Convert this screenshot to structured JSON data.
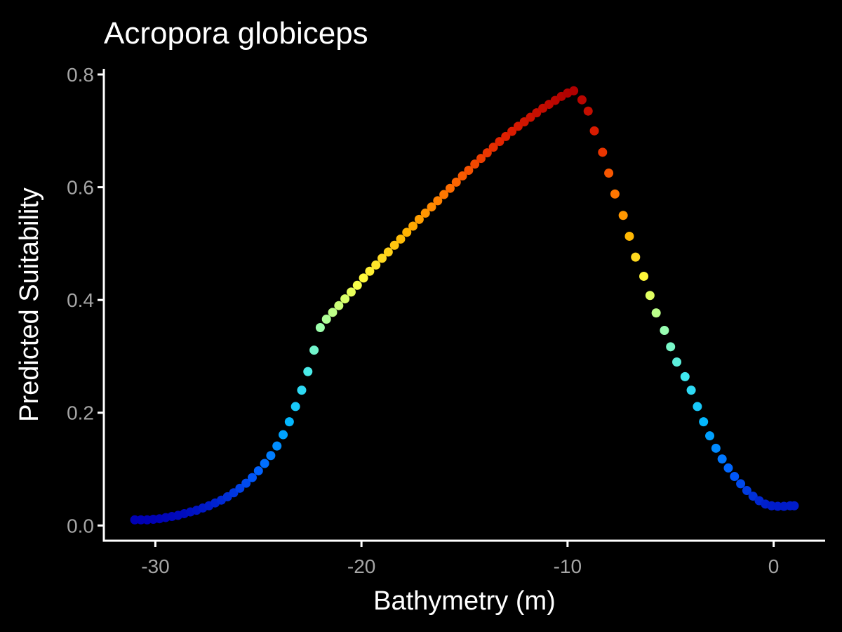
{
  "chart_data": {
    "type": "scatter",
    "title": "Acropora globiceps",
    "xlabel": "Bathymetry (m)",
    "ylabel": "Predicted Suitability",
    "xlim": [
      -32.5,
      2.5
    ],
    "ylim": [
      -0.027,
      0.81
    ],
    "x_ticks": [
      -30,
      -20,
      -10,
      0
    ],
    "x_tick_labels": [
      "-30",
      "-20",
      "-10",
      "0"
    ],
    "y_ticks": [
      0.0,
      0.2,
      0.4,
      0.6,
      0.8
    ],
    "y_tick_labels": [
      "0.0",
      "0.2",
      "0.4",
      "0.6",
      "0.8"
    ],
    "grid": false,
    "legend": "none",
    "color_scale": [
      "#0000b4",
      "#0060ff",
      "#00b4ff",
      "#40e8f0",
      "#9affb0",
      "#ffff40",
      "#ffb400",
      "#ff6a00",
      "#e02000",
      "#b00000"
    ],
    "color_by": "y",
    "points": [
      {
        "x": -31.0,
        "y": 0.01
      },
      {
        "x": -30.7,
        "y": 0.01
      },
      {
        "x": -30.4,
        "y": 0.01
      },
      {
        "x": -30.1,
        "y": 0.011
      },
      {
        "x": -29.8,
        "y": 0.012
      },
      {
        "x": -29.5,
        "y": 0.014
      },
      {
        "x": -29.2,
        "y": 0.016
      },
      {
        "x": -28.9,
        "y": 0.018
      },
      {
        "x": -28.6,
        "y": 0.021
      },
      {
        "x": -28.3,
        "y": 0.024
      },
      {
        "x": -28.0,
        "y": 0.027
      },
      {
        "x": -27.7,
        "y": 0.031
      },
      {
        "x": -27.4,
        "y": 0.035
      },
      {
        "x": -27.1,
        "y": 0.04
      },
      {
        "x": -26.8,
        "y": 0.045
      },
      {
        "x": -26.5,
        "y": 0.051
      },
      {
        "x": -26.2,
        "y": 0.058
      },
      {
        "x": -25.9,
        "y": 0.066
      },
      {
        "x": -25.6,
        "y": 0.075
      },
      {
        "x": -25.3,
        "y": 0.085
      },
      {
        "x": -25.0,
        "y": 0.097
      },
      {
        "x": -24.7,
        "y": 0.11
      },
      {
        "x": -24.4,
        "y": 0.124
      },
      {
        "x": -24.1,
        "y": 0.141
      },
      {
        "x": -23.8,
        "y": 0.161
      },
      {
        "x": -23.5,
        "y": 0.184
      },
      {
        "x": -23.2,
        "y": 0.211
      },
      {
        "x": -22.9,
        "y": 0.24
      },
      {
        "x": -22.6,
        "y": 0.273
      },
      {
        "x": -22.3,
        "y": 0.311
      },
      {
        "x": -22.0,
        "y": 0.351
      },
      {
        "x": -21.7,
        "y": 0.366
      },
      {
        "x": -21.4,
        "y": 0.378
      },
      {
        "x": -21.1,
        "y": 0.39
      },
      {
        "x": -20.8,
        "y": 0.402
      },
      {
        "x": -20.5,
        "y": 0.414
      },
      {
        "x": -20.2,
        "y": 0.426
      },
      {
        "x": -19.9,
        "y": 0.439
      },
      {
        "x": -19.6,
        "y": 0.451
      },
      {
        "x": -19.3,
        "y": 0.462
      },
      {
        "x": -19.0,
        "y": 0.474
      },
      {
        "x": -18.7,
        "y": 0.485
      },
      {
        "x": -18.4,
        "y": 0.497
      },
      {
        "x": -18.1,
        "y": 0.508
      },
      {
        "x": -17.8,
        "y": 0.52
      },
      {
        "x": -17.5,
        "y": 0.531
      },
      {
        "x": -17.2,
        "y": 0.543
      },
      {
        "x": -16.9,
        "y": 0.554
      },
      {
        "x": -16.6,
        "y": 0.565
      },
      {
        "x": -16.3,
        "y": 0.576
      },
      {
        "x": -16.0,
        "y": 0.587
      },
      {
        "x": -15.7,
        "y": 0.598
      },
      {
        "x": -15.4,
        "y": 0.609
      },
      {
        "x": -15.1,
        "y": 0.62
      },
      {
        "x": -14.8,
        "y": 0.63
      },
      {
        "x": -14.5,
        "y": 0.641
      },
      {
        "x": -14.2,
        "y": 0.651
      },
      {
        "x": -13.9,
        "y": 0.661
      },
      {
        "x": -13.6,
        "y": 0.671
      },
      {
        "x": -13.3,
        "y": 0.681
      },
      {
        "x": -13.0,
        "y": 0.69
      },
      {
        "x": -12.7,
        "y": 0.699
      },
      {
        "x": -12.4,
        "y": 0.708
      },
      {
        "x": -12.1,
        "y": 0.716
      },
      {
        "x": -11.8,
        "y": 0.724
      },
      {
        "x": -11.5,
        "y": 0.732
      },
      {
        "x": -11.2,
        "y": 0.74
      },
      {
        "x": -10.9,
        "y": 0.747
      },
      {
        "x": -10.6,
        "y": 0.754
      },
      {
        "x": -10.3,
        "y": 0.761
      },
      {
        "x": -10.0,
        "y": 0.767
      },
      {
        "x": -9.7,
        "y": 0.771
      },
      {
        "x": -9.3,
        "y": 0.755
      },
      {
        "x": -9.0,
        "y": 0.735
      },
      {
        "x": -8.7,
        "y": 0.7
      },
      {
        "x": -8.3,
        "y": 0.662
      },
      {
        "x": -8.0,
        "y": 0.625
      },
      {
        "x": -7.7,
        "y": 0.588
      },
      {
        "x": -7.3,
        "y": 0.55
      },
      {
        "x": -7.0,
        "y": 0.513
      },
      {
        "x": -6.7,
        "y": 0.476
      },
      {
        "x": -6.3,
        "y": 0.442
      },
      {
        "x": -6.0,
        "y": 0.408
      },
      {
        "x": -5.7,
        "y": 0.377
      },
      {
        "x": -5.3,
        "y": 0.346
      },
      {
        "x": -5.0,
        "y": 0.317
      },
      {
        "x": -4.7,
        "y": 0.29
      },
      {
        "x": -4.3,
        "y": 0.264
      },
      {
        "x": -4.0,
        "y": 0.24
      },
      {
        "x": -3.7,
        "y": 0.211
      },
      {
        "x": -3.4,
        "y": 0.184
      },
      {
        "x": -3.1,
        "y": 0.159
      },
      {
        "x": -2.8,
        "y": 0.137
      },
      {
        "x": -2.5,
        "y": 0.118
      },
      {
        "x": -2.2,
        "y": 0.102
      },
      {
        "x": -1.9,
        "y": 0.087
      },
      {
        "x": -1.6,
        "y": 0.074
      },
      {
        "x": -1.3,
        "y": 0.062
      },
      {
        "x": -1.0,
        "y": 0.052
      },
      {
        "x": -0.7,
        "y": 0.044
      },
      {
        "x": -0.4,
        "y": 0.038
      },
      {
        "x": -0.1,
        "y": 0.035
      },
      {
        "x": 0.2,
        "y": 0.034
      },
      {
        "x": 0.5,
        "y": 0.034
      },
      {
        "x": 0.8,
        "y": 0.035
      },
      {
        "x": 1.0,
        "y": 0.035
      }
    ]
  }
}
